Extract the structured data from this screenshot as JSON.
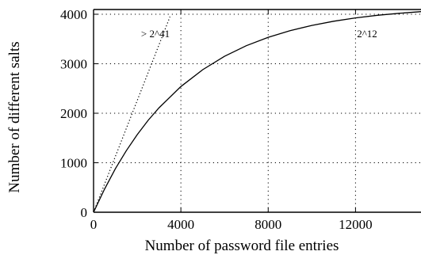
{
  "chart_data": {
    "type": "line",
    "title": "",
    "xlabel": "Number of password file entries",
    "ylabel": "Number of different salts",
    "xlim": [
      0,
      15000
    ],
    "ylim": [
      0,
      4096
    ],
    "x_ticks": [
      "0",
      "4000",
      "8000",
      "12000"
    ],
    "x_tick_values": [
      0,
      4000,
      8000,
      12000
    ],
    "y_ticks": [
      "0",
      "1000",
      "2000",
      "3000",
      "4000"
    ],
    "y_tick_values": [
      0,
      1000,
      2000,
      3000,
      4000
    ],
    "grid": true,
    "series": [
      {
        "style": "solid",
        "x": [
          0,
          500,
          1000,
          1500,
          2000,
          2500,
          3000,
          4000,
          5000,
          6000,
          7000,
          8000,
          9000,
          10000,
          11000,
          12000,
          13000,
          14000,
          15000
        ],
        "y": [
          0,
          466,
          878,
          1244,
          1568,
          1856,
          2110,
          2540,
          2880,
          3150,
          3365,
          3534,
          3668,
          3775,
          3859,
          3926,
          3979,
          4020,
          4053
        ]
      },
      {
        "style": "dotted",
        "x": [
          0,
          3500
        ],
        "y": [
          0,
          3950
        ]
      }
    ],
    "annotations": [
      {
        "text": "> 2^41"
      },
      {
        "text": "2^12"
      }
    ]
  }
}
